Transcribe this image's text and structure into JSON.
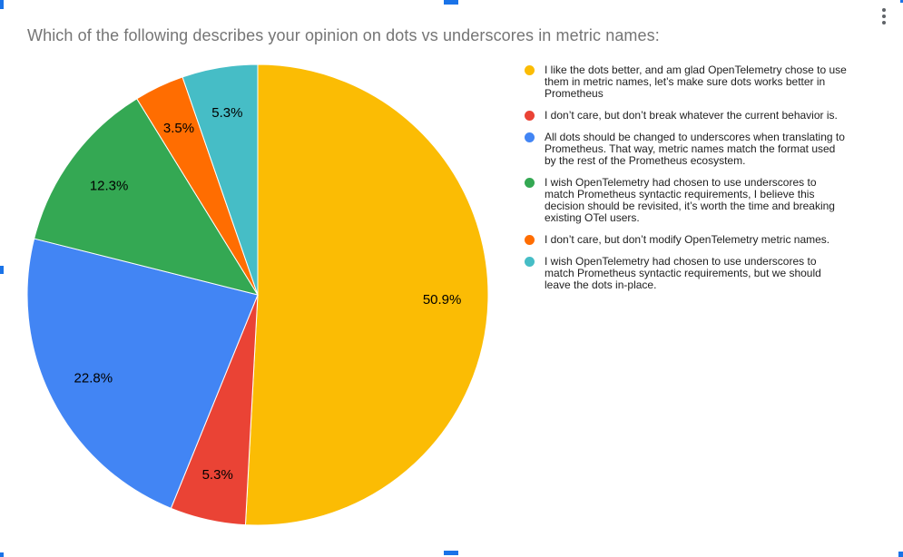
{
  "chart_data": {
    "type": "pie",
    "title": "Which of the following describes your opinion on dots vs underscores in metric names:",
    "title_color": "#757575",
    "legend_position": "right",
    "start_angle_deg": 0,
    "direction": "clockwise",
    "unit": "%",
    "slices": [
      {
        "label": "I like the dots better, and am glad OpenTelemetry chose to use\nthem in metric names, let’s make sure dots works better in\nPrometheus",
        "value": 50.9,
        "display": "50.9%",
        "color": "#FBBC04"
      },
      {
        "label": "I don’t care, but don’t break whatever the current behavior is.",
        "value": 5.3,
        "display": "5.3%",
        "color": "#EA4335"
      },
      {
        "label": "All dots should be changed to underscores when translating to\nPrometheus. That way, metric names match the format used\nby the rest of the Prometheus ecosystem.",
        "value": 22.8,
        "display": "22.8%",
        "color": "#4285F4"
      },
      {
        "label": "I wish OpenTelemetry had chosen to use underscores to\nmatch Prometheus syntactic requirements, I believe this\ndecision should be revisited, it’s worth the time and breaking\nexisting OTel users.",
        "value": 12.3,
        "display": "12.3%",
        "color": "#34A853"
      },
      {
        "label": "I don’t care, but don’t modify OpenTelemetry metric names.",
        "value": 3.5,
        "display": "3.5%",
        "color": "#FF6D01"
      },
      {
        "label": "I wish OpenTelemetry had chosen to use underscores to\nmatch Prometheus syntactic requirements, but we should\nleave the dots in-place.",
        "value": 5.3,
        "display": "5.3%",
        "color": "#46BDC6"
      }
    ]
  },
  "ui": {
    "menu_icon": "kebab-vertical",
    "menu_icon_color": "#5f6368",
    "selection_handle_color": "#1a73e8",
    "label_text_color": "#000000"
  }
}
